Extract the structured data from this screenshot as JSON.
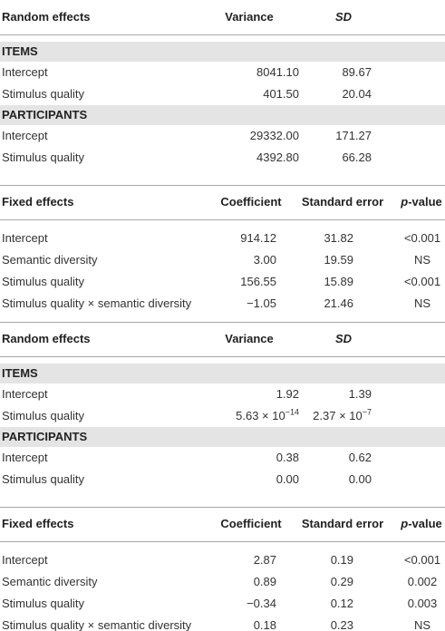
{
  "sections": [
    {
      "kind": "random",
      "header": [
        "Random effects",
        "Variance",
        {
          "italic": "SD"
        }
      ],
      "groups": [
        {
          "label": "ITEMS",
          "rows": [
            [
              "Intercept",
              "8041.10",
              "89.67"
            ],
            [
              "Stimulus quality",
              "401.50",
              "20.04"
            ]
          ]
        },
        {
          "label": "PARTICIPANTS",
          "rows": [
            [
              "Intercept",
              "29332.00",
              "171.27"
            ],
            [
              "Stimulus quality",
              "4392.80",
              "66.28"
            ]
          ]
        }
      ]
    },
    {
      "kind": "fixed",
      "header": [
        "Fixed effects",
        "Coefficient",
        "Standard error",
        {
          "italic": "p",
          "text": "-value"
        }
      ],
      "rows": [
        [
          "Intercept",
          "914.12",
          "31.82",
          "<0.001"
        ],
        [
          "Semantic diversity",
          "3.00",
          "19.59",
          "NS"
        ],
        [
          "Stimulus quality",
          "156.55",
          "15.89",
          "<0.001"
        ],
        [
          "Stimulus quality × semantic diversity",
          "−1.05",
          "21.46",
          "NS"
        ]
      ]
    },
    {
      "kind": "random",
      "header": [
        "Random effects",
        "Variance",
        {
          "italic": "SD"
        }
      ],
      "groups": [
        {
          "label": "ITEMS",
          "rows": [
            [
              "Intercept",
              "1.92",
              "1.39"
            ],
            [
              "Stimulus quality",
              {
                "text": "5.63 × 10",
                "sup": "−14"
              },
              {
                "text": "2.37 × 10",
                "sup": "−7"
              }
            ]
          ]
        },
        {
          "label": "PARTICIPANTS",
          "rows": [
            [
              "Intercept",
              "0.38",
              "0.62"
            ],
            [
              "Stimulus quality",
              "0.00",
              "0.00"
            ]
          ]
        }
      ]
    },
    {
      "kind": "fixed",
      "header": [
        "Fixed effects",
        "Coefficient",
        "Standard error",
        {
          "italic": "p",
          "text": "-value"
        }
      ],
      "rows": [
        [
          "Intercept",
          "2.87",
          "0.19",
          "<0.001"
        ],
        [
          "Semantic diversity",
          "0.89",
          "0.29",
          "0.002"
        ],
        [
          "Stimulus quality",
          "−0.34",
          "0.12",
          "0.003"
        ],
        [
          "Stimulus quality × semantic diversity",
          "0.18",
          "0.23",
          "NS"
        ]
      ]
    }
  ]
}
